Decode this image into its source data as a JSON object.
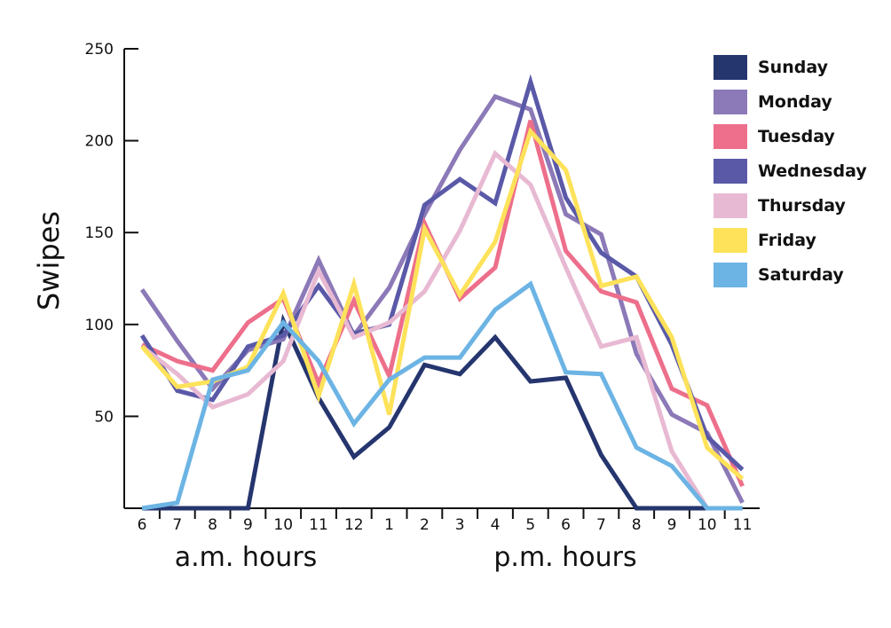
{
  "chart_data": {
    "type": "line",
    "title": "",
    "ylabel": "Swipes",
    "ylim": [
      0,
      250
    ],
    "yticks": [
      "50",
      "100",
      "150",
      "200",
      "250"
    ],
    "categories": [
      "6",
      "7",
      "8",
      "9",
      "10",
      "11",
      "12",
      "1",
      "2",
      "3",
      "4",
      "5",
      "6",
      "7",
      "8",
      "9",
      "10",
      "11"
    ],
    "category_groups": [
      {
        "label": "a.m. hours",
        "range": [
          0,
          5
        ]
      },
      {
        "label": "p.m. hours",
        "range": [
          6,
          17
        ]
      }
    ],
    "legend_position": "top-right",
    "series": [
      {
        "name": "Sunday",
        "color": "#25356e",
        "values": [
          0,
          0,
          0,
          0,
          102,
          60,
          28,
          44,
          78,
          73,
          93,
          69,
          71,
          29,
          0,
          0,
          0,
          0
        ]
      },
      {
        "name": "Monday",
        "color": "#8c79b7",
        "values": [
          119,
          91,
          65,
          86,
          92,
          135,
          94,
          120,
          160,
          195,
          224,
          217,
          160,
          149,
          84,
          51,
          41,
          3
        ]
      },
      {
        "name": "Tuesday",
        "color": "#ed6f8b",
        "values": [
          89,
          80,
          75,
          101,
          114,
          68,
          113,
          72,
          155,
          114,
          131,
          211,
          140,
          118,
          112,
          65,
          56,
          12
        ]
      },
      {
        "name": "Wednesday",
        "color": "#5a59a8",
        "values": [
          94,
          64,
          59,
          88,
          94,
          121,
          95,
          100,
          165,
          179,
          166,
          232,
          169,
          139,
          126,
          89,
          39,
          21
        ]
      },
      {
        "name": "Thursday",
        "color": "#e8b9d2",
        "values": [
          88,
          73,
          55,
          62,
          80,
          129,
          93,
          101,
          118,
          151,
          193,
          176,
          131,
          88,
          93,
          31,
          0,
          0
        ]
      },
      {
        "name": "Friday",
        "color": "#fde25a",
        "values": [
          88,
          66,
          69,
          77,
          117,
          61,
          122,
          51,
          152,
          116,
          145,
          205,
          184,
          121,
          126,
          93,
          33,
          16
        ]
      },
      {
        "name": "Saturday",
        "color": "#6cb4e4",
        "values": [
          0,
          3,
          70,
          75,
          101,
          80,
          46,
          70,
          82,
          82,
          108,
          122,
          74,
          73,
          33,
          23,
          0,
          0
        ]
      }
    ]
  }
}
